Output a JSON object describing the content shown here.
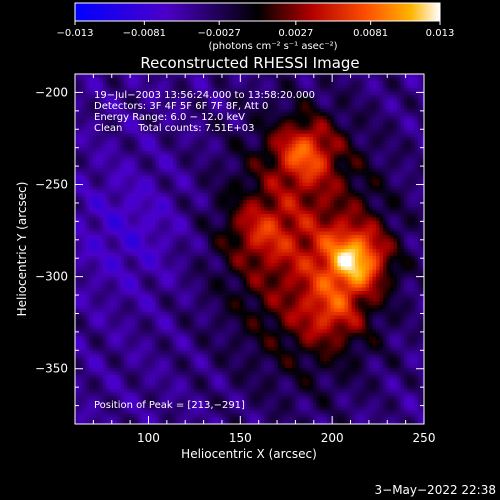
{
  "chart_data": {
    "type": "heatmap",
    "title": "Reconstructed RHESSI Image",
    "xlabel": "Heliocentric X (arcsec)",
    "ylabel": "Heliocentric Y (arcsec)",
    "xlim": [
      60,
      250
    ],
    "ylim": [
      -380,
      -190
    ],
    "x_ticks": [
      100,
      150,
      200,
      250
    ],
    "y_ticks": [
      -200,
      -250,
      -300,
      -350
    ],
    "x_tick_labels": [
      "100",
      "150",
      "200",
      "250"
    ],
    "y_tick_labels": [
      "−200",
      "−250",
      "−300",
      "−350"
    ],
    "colorbar": {
      "range": [
        -0.013,
        0.013
      ],
      "tick_labels": [
        "−0.013",
        "−0.0081",
        "−0.0027",
        "0.0027",
        "0.0081",
        "0.013"
      ],
      "unit_label": "(photons cm⁻² s⁻¹ asec⁻²)"
    },
    "annotations": [
      "19−Jul−2003 13:56:24.000 to 13:58:20.000",
      "Detectors: 3F 4F 5F 6F 7F 8F, Att 0",
      "Energy Range: 6.0 − 12.0 keV",
      "Clean     Total counts: 7.51E+03"
    ],
    "peak_label": "Position of Peak = [213,−291]",
    "peak": [
      213,
      -291
    ],
    "sources": [
      {
        "x": 213,
        "y": -291,
        "value": 0.013
      },
      {
        "x": 185,
        "y": -232,
        "value": 0.0095
      },
      {
        "x": 160,
        "y": -275,
        "value": 0.005
      },
      {
        "x": 200,
        "y": -320,
        "value": 0.006
      }
    ],
    "footer_date": "3−May−2022 22:38"
  }
}
